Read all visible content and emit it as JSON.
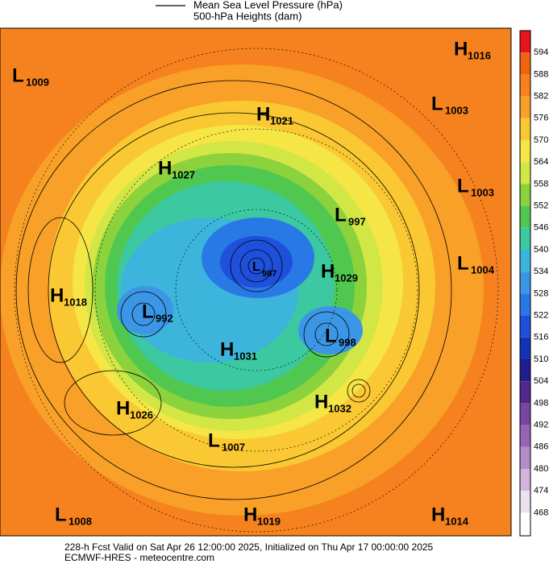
{
  "legend": {
    "line_label": "Mean Sea Level Pressure (hPa)",
    "fill_label": "500-hPa Heights (dam)"
  },
  "colorbar": {
    "levels": [
      594,
      588,
      582,
      576,
      570,
      564,
      558,
      552,
      546,
      540,
      534,
      528,
      522,
      516,
      510,
      504,
      498,
      492,
      486,
      480,
      474,
      468
    ],
    "colors": [
      "#e8141c",
      "#f06414",
      "#f5821e",
      "#f8a028",
      "#fac832",
      "#f5e646",
      "#d2e646",
      "#8cd23c",
      "#50c850",
      "#3cc8a0",
      "#3cb4dc",
      "#3c96e6",
      "#2878e6",
      "#1e50dc",
      "#1432b4",
      "#1e1e8c",
      "#50288c",
      "#7846a0",
      "#9664b4",
      "#b48cc8",
      "#d2b4dc",
      "#ebe1f0"
    ]
  },
  "centers": [
    {
      "type": "L",
      "value": 1009
    },
    {
      "type": "H",
      "value": 1016
    },
    {
      "type": "H",
      "value": 1021
    },
    {
      "type": "L",
      "value": 1003
    },
    {
      "type": "H",
      "value": 1027
    },
    {
      "type": "L",
      "value": 1003
    },
    {
      "type": "L",
      "value": 997
    },
    {
      "type": "L",
      "value": 987
    },
    {
      "type": "H",
      "value": 1029
    },
    {
      "type": "L",
      "value": 1004
    },
    {
      "type": "H",
      "value": 1018
    },
    {
      "type": "L",
      "value": 992
    },
    {
      "type": "L",
      "value": 998
    },
    {
      "type": "H",
      "value": 1031
    },
    {
      "type": "H",
      "value": 1026
    },
    {
      "type": "H",
      "value": 1032
    },
    {
      "type": "L",
      "value": 1007
    },
    {
      "type": "L",
      "value": 1008
    },
    {
      "type": "H",
      "value": 1019
    },
    {
      "type": "H",
      "value": 1014
    }
  ],
  "footer": {
    "line1": "228-h Fcst Valid on Sat Apr 26 12:00:00 2025, Initialized on Thu Apr 17 00:00:00 2025",
    "line2": "ECMWF-HRES  - meteocentre.com"
  }
}
